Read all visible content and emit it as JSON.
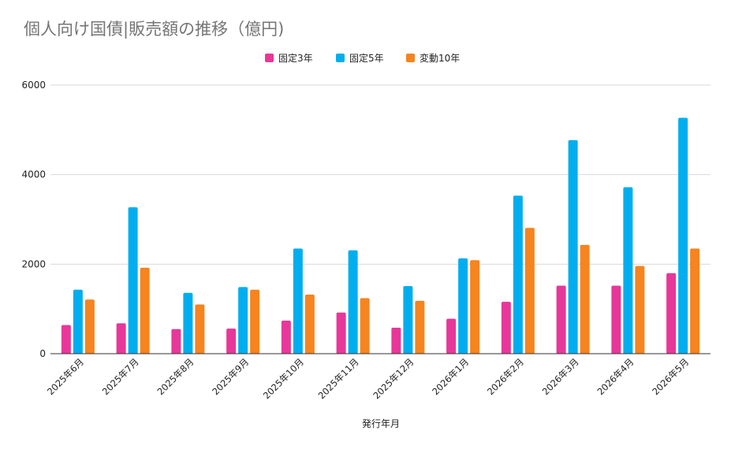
{
  "chart_data": {
    "type": "bar",
    "title": "個人向け国債|販売額の推移（億円)",
    "xlabel": "発行年月",
    "ylabel": "",
    "ylim": [
      0,
      6000
    ],
    "yticks": [
      0,
      2000,
      4000,
      6000
    ],
    "grid": true,
    "legend_position": "top",
    "categories": [
      "2025年6月",
      "2025年7月",
      "2025年8月",
      "2025年9月",
      "2025年10月",
      "2025年11月",
      "2025年12月",
      "2026年1月",
      "2026年2月",
      "2026年3月",
      "2026年4月",
      "2026年5月"
    ],
    "series": [
      {
        "name": "固定3年",
        "color": "#e8379a",
        "values": [
          640,
          680,
          550,
          560,
          740,
          920,
          580,
          780,
          1160,
          1520,
          1520,
          1800
        ]
      },
      {
        "name": "固定5年",
        "color": "#00aeef",
        "values": [
          1430,
          3270,
          1360,
          1490,
          2350,
          2310,
          1510,
          2130,
          3530,
          4770,
          3720,
          5270
        ]
      },
      {
        "name": "変動10年",
        "color": "#f6841f",
        "values": [
          1210,
          1920,
          1100,
          1430,
          1320,
          1240,
          1180,
          2090,
          2810,
          2430,
          1960,
          2350
        ]
      }
    ]
  }
}
